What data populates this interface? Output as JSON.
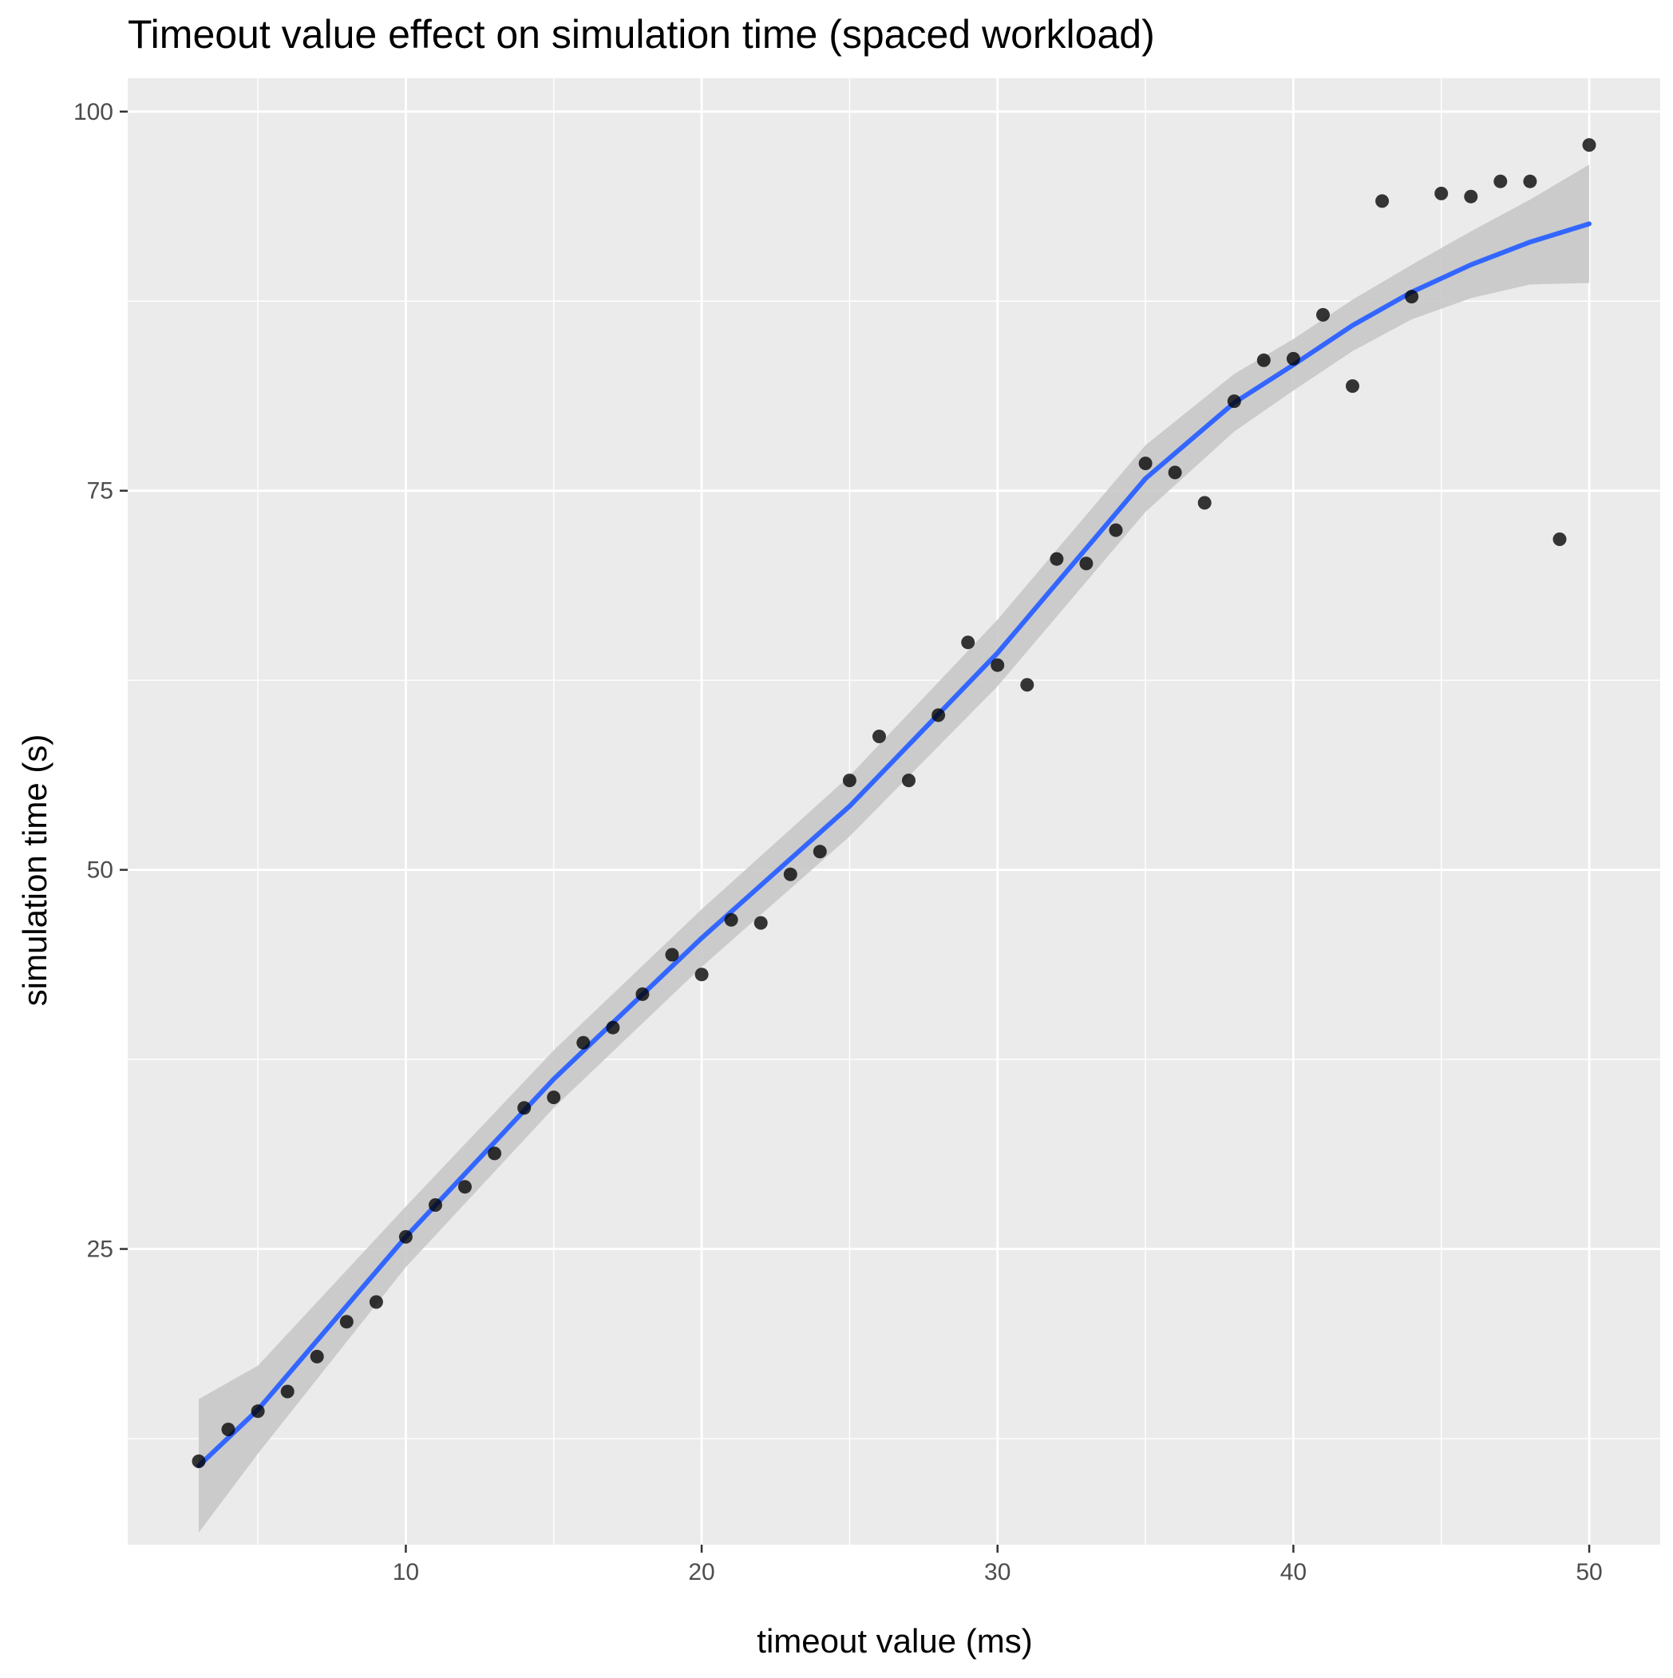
{
  "chart_data": {
    "type": "scatter",
    "title": "Timeout value effect on simulation time (spaced workload)",
    "xlabel": "timeout value (ms)",
    "ylabel": "simulation time (s)",
    "xlim": [
      0.6,
      52.4
    ],
    "ylim": [
      5.5,
      102.2
    ],
    "xticks": [
      10,
      20,
      30,
      40,
      50
    ],
    "yticks": [
      25,
      50,
      75,
      100
    ],
    "xminor": [
      5,
      15,
      25,
      35,
      45
    ],
    "yminor": [
      12.5,
      37.5,
      62.5,
      87.5
    ],
    "grid": true,
    "legend": "none",
    "colors": {
      "panel": "#ebebeb",
      "grid": "#ffffff",
      "points": "#000000",
      "smooth": "#3366ff",
      "ribbon": "#c8c8c8"
    },
    "points": {
      "x": [
        3,
        4,
        5,
        6,
        7,
        8,
        9,
        10,
        11,
        12,
        13,
        14,
        15,
        16,
        17,
        18,
        19,
        20,
        21,
        22,
        23,
        24,
        25,
        26,
        27,
        28,
        29,
        30,
        31,
        32,
        33,
        34,
        35,
        36,
        37,
        38,
        39,
        40,
        41,
        42,
        43,
        44,
        45,
        46,
        47,
        48,
        49,
        50
      ],
      "y": [
        11.0,
        13.1,
        14.3,
        15.6,
        17.9,
        20.2,
        21.5,
        25.8,
        27.9,
        29.1,
        31.3,
        34.3,
        35.0,
        38.6,
        39.6,
        41.8,
        44.4,
        43.1,
        46.7,
        46.5,
        49.7,
        51.2,
        55.9,
        58.8,
        55.9,
        60.2,
        65.0,
        63.5,
        62.2,
        70.5,
        70.2,
        72.4,
        76.8,
        76.2,
        74.2,
        80.9,
        83.6,
        83.7,
        86.6,
        81.9,
        94.1,
        87.8,
        94.6,
        94.4,
        95.4,
        95.4,
        71.8,
        97.8
      ]
    },
    "smooth": {
      "x": [
        3,
        5,
        10,
        15,
        20,
        25,
        30,
        35,
        38,
        40,
        42,
        44,
        46,
        48,
        50
      ],
      "y": [
        10.7,
        14.4,
        25.8,
        36.2,
        45.5,
        54.2,
        64.3,
        75.8,
        80.8,
        83.3,
        85.9,
        88.1,
        89.9,
        91.4,
        92.6
      ],
      "ymin": [
        6.3,
        11.5,
        23.8,
        34.3,
        43.6,
        52.2,
        62.1,
        73.6,
        78.9,
        81.6,
        84.2,
        86.3,
        87.7,
        88.6,
        88.7
      ],
      "ymax": [
        15.1,
        17.3,
        27.8,
        38.1,
        47.4,
        56.2,
        66.5,
        78.0,
        82.7,
        85.0,
        87.6,
        89.9,
        92.1,
        94.2,
        96.5
      ]
    }
  }
}
